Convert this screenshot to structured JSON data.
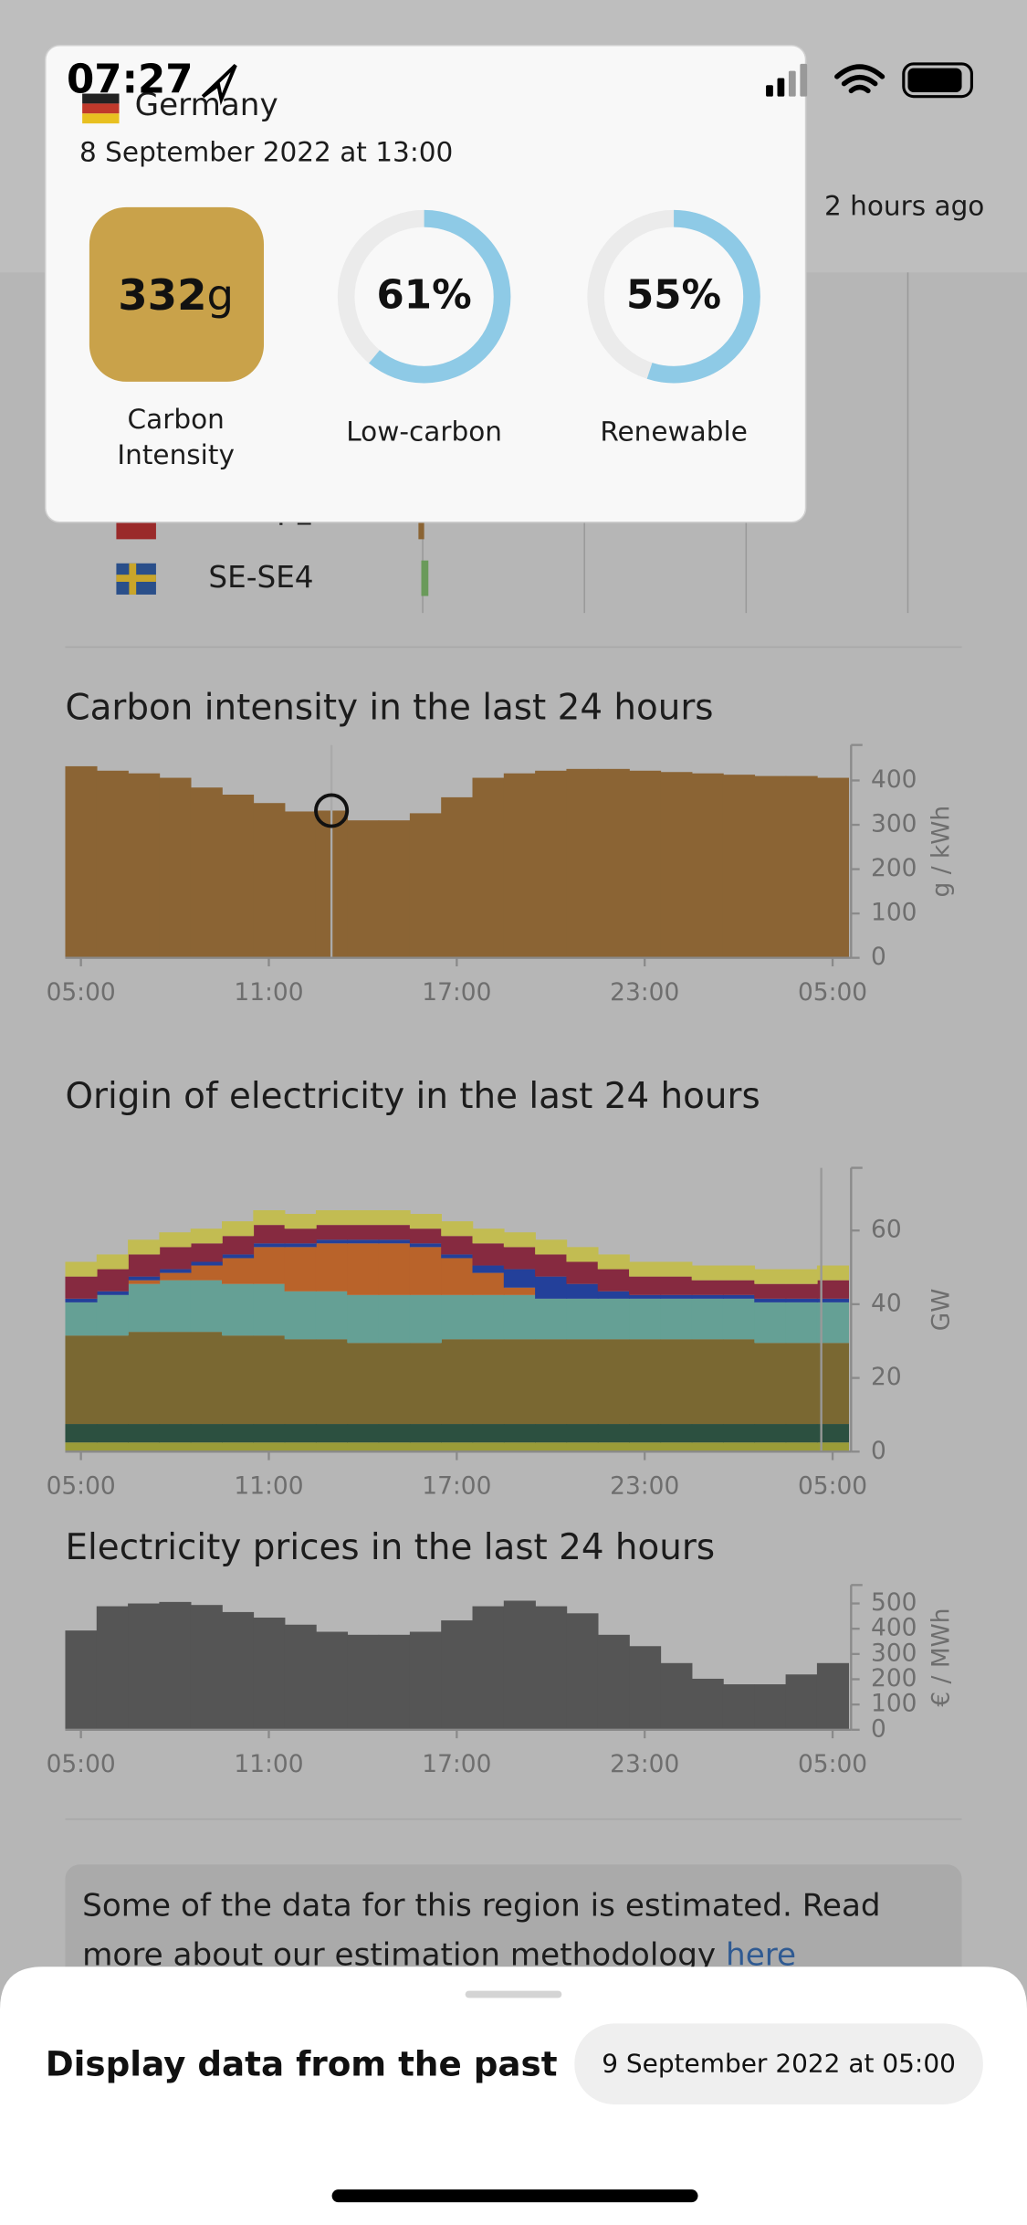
{
  "status_bar": {
    "time": "07:27"
  },
  "header": {
    "updated": "2 hours ago"
  },
  "zone_list": [
    {
      "label": "PL"
    },
    {
      "label": "SE-SE4"
    }
  ],
  "tooltip": {
    "zone": "Germany",
    "datetime": "8 September 2022 at 13:00",
    "carbon_intensity": {
      "value": 332,
      "unit": "g",
      "label": "Carbon Intensity"
    },
    "low_carbon": {
      "value": 61,
      "value_label": "61%",
      "label": "Low-carbon"
    },
    "renewable": {
      "value": 55,
      "value_label": "55%",
      "label": "Renewable"
    }
  },
  "chart_data": [
    {
      "type": "bar",
      "title": "Carbon intensity in the last 24 hours",
      "y_label": "g / kWh",
      "color": "#8b6434",
      "categories": [
        "05:00",
        null,
        null,
        null,
        null,
        null,
        "11:00",
        null,
        null,
        null,
        null,
        null,
        "17:00",
        null,
        null,
        null,
        null,
        null,
        "23:00",
        null,
        null,
        null,
        null,
        null,
        "05:00"
      ],
      "values": [
        432,
        422,
        416,
        406,
        384,
        368,
        349,
        330,
        332,
        310,
        310,
        326,
        362,
        406,
        416,
        422,
        426,
        426,
        422,
        419,
        416,
        413,
        410,
        410,
        406
      ],
      "ylim": [
        0,
        480
      ],
      "yticks": [
        0,
        100,
        200,
        300,
        400
      ]
    },
    {
      "type": "stacked_area",
      "title": "Origin of electricity in the last 24 hours",
      "y_label": "GW",
      "categories": [
        "05:00",
        null,
        null,
        null,
        null,
        null,
        "11:00",
        null,
        null,
        null,
        null,
        null,
        "17:00",
        null,
        null,
        null,
        null,
        null,
        "23:00",
        null,
        null,
        null,
        null,
        null,
        "05:00"
      ],
      "series": [
        {
          "color": "#9a9c38",
          "values": [
            2.5,
            2.5,
            2.5,
            2.5,
            2.5,
            2.5,
            2.5,
            2.5,
            2.5,
            2.5,
            2.5,
            2.5,
            2.5,
            2.5,
            2.5,
            2.5,
            2.5,
            2.5,
            2.5,
            2.5,
            2.5,
            2.5,
            2.5,
            2.5,
            2.5
          ]
        },
        {
          "color": "#2c5040",
          "values": [
            5,
            5,
            5,
            5,
            5,
            5,
            5,
            5,
            5,
            5,
            5,
            5,
            5,
            5,
            5,
            5,
            5,
            5,
            5,
            5,
            5,
            5,
            5,
            5,
            5
          ]
        },
        {
          "color": "#7a6832",
          "values": [
            24,
            24,
            25,
            25,
            25,
            24,
            24,
            23,
            23,
            22,
            22,
            22,
            23,
            23,
            23,
            23,
            23,
            23,
            23,
            23,
            23,
            23,
            22,
            22,
            22
          ]
        },
        {
          "color": "#65a095",
          "values": [
            9,
            11,
            13,
            14,
            14,
            14,
            14,
            13,
            13,
            13,
            13,
            13,
            12,
            12,
            12,
            11,
            11,
            11,
            11,
            11,
            11,
            11,
            11,
            11,
            11
          ]
        },
        {
          "color": "#b9632a",
          "values": [
            0,
            0,
            1,
            2,
            4,
            7,
            10,
            12,
            13,
            14,
            14,
            13,
            10,
            6,
            2,
            0,
            0,
            0,
            0,
            0,
            0,
            0,
            0,
            0,
            0
          ]
        },
        {
          "color": "#23409a",
          "values": [
            1,
            1,
            1,
            1,
            1,
            1,
            1,
            1,
            1,
            1,
            1,
            1,
            1,
            2,
            5,
            6,
            4,
            2,
            1,
            1,
            1,
            1,
            1,
            1,
            1
          ]
        },
        {
          "color": "#862a40",
          "values": [
            6,
            6,
            6,
            6,
            5,
            5,
            5,
            4,
            4,
            4,
            4,
            4,
            5,
            6,
            6,
            6,
            6,
            6,
            5,
            5,
            4,
            4,
            4,
            4,
            5
          ]
        },
        {
          "color": "#c2bc52",
          "values": [
            4,
            4,
            4,
            4,
            4,
            4,
            4,
            4,
            4,
            4,
            4,
            4,
            4,
            4,
            4,
            4,
            4,
            4,
            4,
            4,
            4,
            4,
            4,
            4,
            4
          ]
        }
      ],
      "ylim": [
        0,
        77
      ],
      "yticks": [
        0,
        20,
        40,
        60
      ]
    },
    {
      "type": "bar",
      "title": "Electricity prices in the last 24 hours",
      "y_label": "€ / MWh",
      "color": "#555555",
      "categories": [
        "05:00",
        null,
        null,
        null,
        null,
        null,
        "11:00",
        null,
        null,
        null,
        null,
        null,
        "17:00",
        null,
        null,
        null,
        null,
        null,
        "23:00",
        null,
        null,
        null,
        null,
        null,
        "05:00"
      ],
      "values": [
        393,
        489,
        500,
        506,
        494,
        466,
        444,
        416,
        388,
        376,
        376,
        388,
        433,
        489,
        511,
        489,
        461,
        376,
        331,
        264,
        202,
        180,
        180,
        219,
        264
      ],
      "ylim": [
        0,
        573
      ],
      "yticks": [
        0,
        100,
        200,
        300,
        400,
        500
      ]
    }
  ],
  "notice": {
    "text": "Some of the data for this region is estimated. Read more about our estimation methodology",
    "link": "here"
  },
  "bottom_sheet": {
    "title": "Display data from the past",
    "date": "9 September 2022 at 05:00"
  }
}
